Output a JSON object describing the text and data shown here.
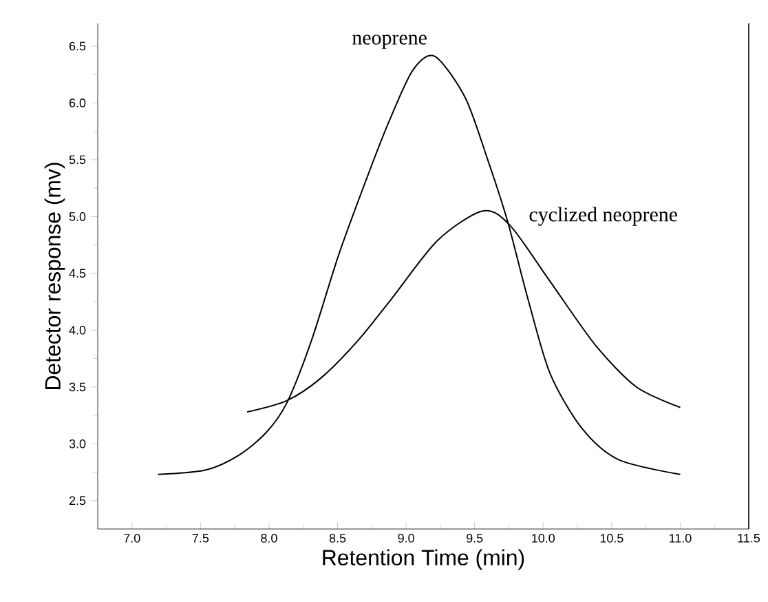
{
  "chart_data": {
    "type": "line",
    "xlabel": "Retention Time (min)",
    "ylabel": "Detector response (mv)",
    "xlim": [
      6.75,
      11.5
    ],
    "ylim": [
      2.25,
      6.7
    ],
    "xticks": [
      {
        "value": 7.0,
        "label": "7.0"
      },
      {
        "value": 7.5,
        "label": "7.5"
      },
      {
        "value": 8.0,
        "label": "8.0"
      },
      {
        "value": 8.5,
        "label": "8.5"
      },
      {
        "value": 9.0,
        "label": "9.0"
      },
      {
        "value": 9.5,
        "label": "9.5"
      },
      {
        "value": 10.0,
        "label": "10.0"
      },
      {
        "value": 10.5,
        "label": "10.5"
      },
      {
        "value": 11.0,
        "label": "11.0"
      },
      {
        "value": 11.5,
        "label": "11.5"
      }
    ],
    "yticks": [
      2.5,
      {
        "value": 3.0,
        "label": "3.0"
      },
      3.5,
      {
        "value": 4.0,
        "label": "4.0"
      },
      4.5,
      {
        "value": 5.0,
        "label": "5.0"
      },
      5.5,
      {
        "value": 6.0,
        "label": "6.0"
      },
      6.5
    ],
    "marker": "none",
    "line_style": "solid",
    "legend": false,
    "grid": false,
    "series": [
      {
        "name": "neoprene",
        "color": "#000000",
        "x": [
          7.19,
          7.54,
          7.78,
          7.98,
          8.13,
          8.31,
          8.51,
          8.72,
          8.88,
          9.05,
          9.21,
          9.43,
          9.59,
          9.74,
          9.89,
          10.05,
          10.28,
          10.55,
          11.0
        ],
        "values": [
          2.73,
          2.77,
          2.9,
          3.1,
          3.36,
          3.91,
          4.67,
          5.36,
          5.85,
          6.29,
          6.41,
          6.05,
          5.52,
          4.96,
          4.27,
          3.62,
          3.14,
          2.86,
          2.73
        ]
      },
      {
        "name": "cyclized neoprene",
        "color": "#000000",
        "x": [
          7.84,
          8.13,
          8.38,
          8.65,
          8.89,
          9.23,
          9.56,
          9.76,
          10.05,
          10.38,
          10.68,
          11.0
        ],
        "values": [
          3.28,
          3.38,
          3.58,
          3.91,
          4.27,
          4.79,
          5.05,
          4.92,
          4.43,
          3.87,
          3.5,
          3.32
        ]
      }
    ]
  }
}
